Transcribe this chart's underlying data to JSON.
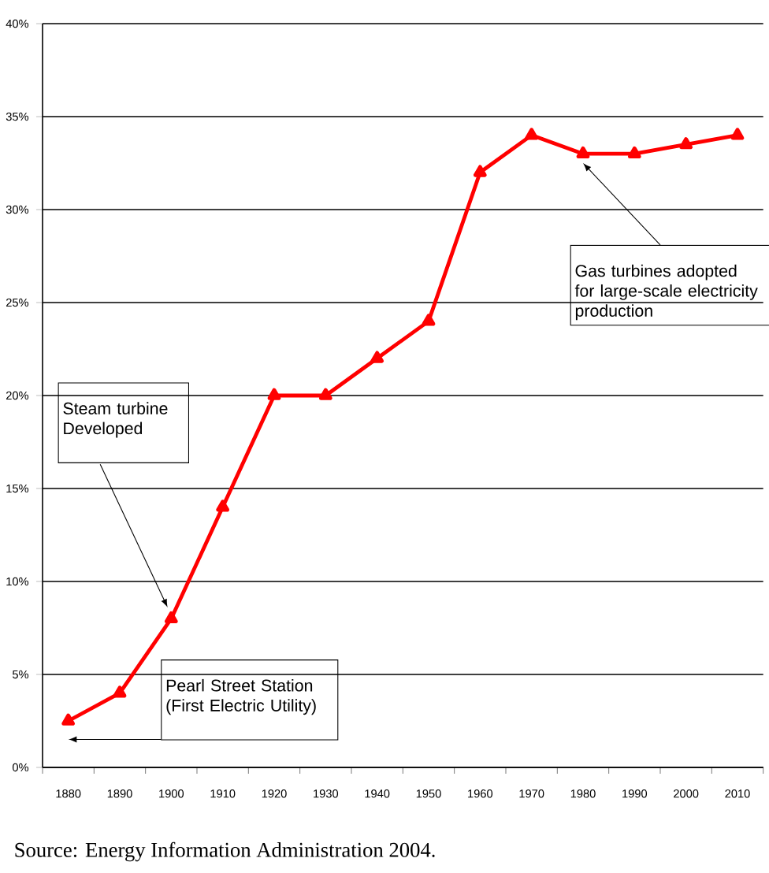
{
  "chart_data": {
    "type": "line",
    "categories": [
      "1880",
      "1890",
      "1900",
      "1910",
      "1920",
      "1930",
      "1940",
      "1950",
      "1960",
      "1970",
      "1980",
      "1990",
      "2000",
      "2010"
    ],
    "series": [
      {
        "color": "#ff0000",
        "values": [
          2.5,
          4,
          8,
          14,
          20,
          20,
          22,
          24,
          32,
          34,
          33,
          33,
          33.5,
          34
        ]
      }
    ],
    "ylim": [
      0,
      40
    ],
    "yticks": [
      {
        "value": 0,
        "label": "0%"
      },
      {
        "value": 5,
        "label": "5%"
      },
      {
        "value": 10,
        "label": "10%"
      },
      {
        "value": 15,
        "label": "15%"
      },
      {
        "value": 20,
        "label": "20%"
      },
      {
        "value": 25,
        "label": "25%"
      },
      {
        "value": 30,
        "label": "30%"
      },
      {
        "value": 35,
        "label": "35%"
      },
      {
        "value": 40,
        "label": "40%"
      }
    ],
    "grid": "y",
    "marker": "triangle",
    "line_style": "solid",
    "annotations": [
      "Steam turbine Developed",
      "Pearl Street Station (First Electric Utility)",
      {
        "text": "Gas turbines adopted for large-scale electricity production",
        "x": "1980",
        "y": 32.5
      },
      "Source:  Energy Information Administration 2004."
    ]
  }
}
